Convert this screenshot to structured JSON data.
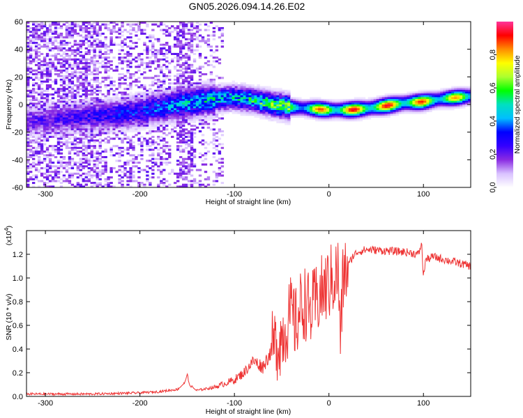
{
  "title": "GN05.2026.094.14.26.E02",
  "chart_data": [
    {
      "type": "heatmap",
      "name": "spectrogram",
      "xlabel": "Height of straight line (km)",
      "ylabel": "Frequency (Hz)",
      "xlim": [
        -320,
        150
      ],
      "ylim": [
        -60,
        60
      ],
      "x_ticks": [
        -300,
        -200,
        -100,
        0,
        100
      ],
      "y_ticks": [
        -60,
        -40,
        -20,
        0,
        20,
        40,
        60
      ],
      "colorbar": {
        "label": "Normalized spectral amplitude",
        "range": [
          0,
          1
        ],
        "ticks": [
          0.0,
          0.2,
          0.4,
          0.6,
          0.8
        ],
        "colors": [
          "#ffffff",
          "#d9c2ff",
          "#8a2be2",
          "#3300ff",
          "#0000ff",
          "#00bfff",
          "#00e0c0",
          "#00ff00",
          "#adff2f",
          "#ffff00",
          "#ff8c00",
          "#ff0000",
          "#ff3399"
        ]
      },
      "ridge": {
        "x": [
          -320,
          -280,
          -240,
          -200,
          -160,
          -120,
          -100,
          -80,
          -60,
          -40,
          -20,
          0,
          20,
          40,
          60,
          80,
          100,
          120,
          150
        ],
        "freq": [
          -12,
          -10,
          -8,
          -5,
          0,
          4,
          5,
          3,
          0,
          -2,
          -3,
          -4,
          -4,
          -3,
          -1,
          1,
          2,
          4,
          6
        ],
        "amplitude": [
          0.2,
          0.25,
          0.3,
          0.35,
          0.45,
          0.5,
          0.5,
          0.55,
          0.6,
          0.7,
          0.8,
          0.95,
          0.95,
          0.95,
          0.95,
          0.95,
          0.9,
          0.85,
          0.8
        ]
      }
    },
    {
      "type": "line",
      "name": "snr",
      "xlabel": "Height of straight line (km)",
      "ylabel": "SNR (10 * v/v)",
      "scale_label": "(x10",
      "scale_exponent": "4",
      "xlim": [
        -320,
        150
      ],
      "ylim": [
        0,
        1.4
      ],
      "x_ticks": [
        -300,
        -200,
        -100,
        0,
        100
      ],
      "y_ticks": [
        0.0,
        0.2,
        0.4,
        0.6,
        0.8,
        1.0,
        1.2
      ],
      "color": "#ee3333",
      "series": [
        {
          "name": "SNR",
          "x": [
            -320,
            -250,
            -200,
            -180,
            -160,
            -152,
            -150,
            -148,
            -140,
            -120,
            -100,
            -90,
            -80,
            -70,
            -60,
            -50,
            -45,
            -40,
            -35,
            -30,
            -25,
            -20,
            -15,
            -10,
            -5,
            0,
            5,
            10,
            12,
            15,
            20,
            25,
            30,
            40,
            60,
            80,
            95,
            98,
            100,
            102,
            110,
            130,
            150
          ],
          "y": [
            0.02,
            0.02,
            0.03,
            0.04,
            0.06,
            0.12,
            0.2,
            0.1,
            0.05,
            0.08,
            0.14,
            0.2,
            0.3,
            0.25,
            0.4,
            0.5,
            0.6,
            0.7,
            0.6,
            0.75,
            0.8,
            0.7,
            0.78,
            0.85,
            0.9,
            0.95,
            1.0,
            1.05,
            0.45,
            1.0,
            1.1,
            1.18,
            1.22,
            1.24,
            1.23,
            1.22,
            1.2,
            1.3,
            1.0,
            1.15,
            1.18,
            1.14,
            1.1
          ]
        }
      ]
    }
  ]
}
